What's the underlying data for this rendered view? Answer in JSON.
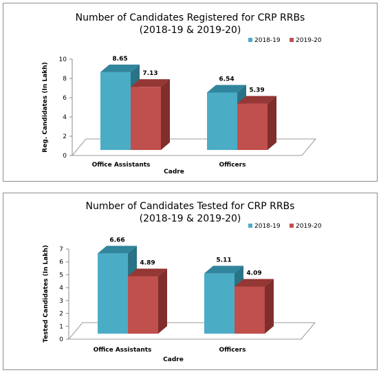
{
  "chart_data": [
    {
      "type": "bar",
      "title_line1": "Number of Candidates Registered for CRP RRBs",
      "title_line2": "(2018-19 & 2019-20)",
      "xlabel": "Cadre",
      "ylabel": "Reg. Candidates (In Lakh)",
      "categories": [
        "Office Assistants",
        "Officers"
      ],
      "series": [
        {
          "name": "2018-19",
          "values": [
            8.65,
            6.54
          ],
          "color": "#4bacc6",
          "top_color": "#31859c",
          "side_color": "#2a7285"
        },
        {
          "name": "2019-20",
          "values": [
            7.13,
            5.39
          ],
          "color": "#c0504d",
          "top_color": "#953735",
          "side_color": "#7f2e2c"
        }
      ],
      "ylim": [
        0,
        10
      ],
      "yticks": [
        0,
        2,
        4,
        6,
        8,
        10
      ],
      "data_labels": [
        "8.65",
        "7.13",
        "6.54",
        "5.39"
      ],
      "legend_position": "top-right",
      "grid": false
    },
    {
      "type": "bar",
      "title_line1": "Number of Candidates Tested for CRP RRBs",
      "title_line2": "(2018-19 & 2019-20)",
      "xlabel": "Cadre",
      "ylabel": "Tested Candidates (In Lakh)",
      "categories": [
        "Office Assistants",
        "Officers"
      ],
      "series": [
        {
          "name": "2018-19",
          "values": [
            6.66,
            5.11
          ],
          "color": "#4bacc6",
          "top_color": "#31859c",
          "side_color": "#2a7285"
        },
        {
          "name": "2019-20",
          "values": [
            4.89,
            4.09
          ],
          "color": "#c0504d",
          "top_color": "#953735",
          "side_color": "#7f2e2c"
        }
      ],
      "ylim": [
        0,
        7
      ],
      "yticks": [
        0,
        1,
        2,
        3,
        4,
        5,
        6,
        7
      ],
      "data_labels": [
        "6.66",
        "4.89",
        "5.11",
        "4.09"
      ],
      "legend_position": "top-right",
      "grid": false
    }
  ]
}
